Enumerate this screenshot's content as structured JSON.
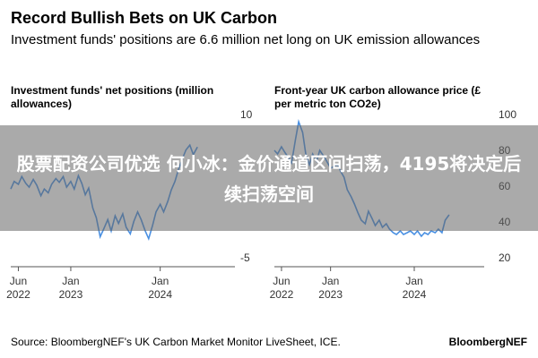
{
  "header": {
    "title": "Record Bullish Bets on UK Carbon",
    "subtitle": "Investment funds' positions are 6.6 million net long on UK emission allowances"
  },
  "overlay": {
    "text": "股票配资公司优选 何小冰：金价通道区间扫荡，4195将决定后续扫荡空间"
  },
  "footer": {
    "source": "Source: BloombergNEF's UK Carbon Market Monitor LiveSheet, ICE.",
    "brand": "BloombergNEF"
  },
  "colors": {
    "series": "#4a90e2"
  },
  "chart_data": [
    {
      "type": "line",
      "title_lines": [
        "Investment funds' net positions (million",
        "allowances)"
      ],
      "xlim": [
        "2022-05-01",
        "2024-11-01"
      ],
      "ylim": [
        -5,
        10
      ],
      "y_ticks": [
        -5,
        10
      ],
      "x_ticks": [
        {
          "date": "2022-06-01",
          "lines": [
            "Jun",
            "2022"
          ]
        },
        {
          "date": "2023-01-01",
          "lines": [
            "Jan",
            "2023"
          ]
        },
        {
          "date": "2024-01-01",
          "lines": [
            "Jan",
            "2024"
          ]
        }
      ],
      "series": [
        {
          "points": [
            [
              "2022-05-01",
              2.2
            ],
            [
              "2022-05-15",
              3.0
            ],
            [
              "2022-06-01",
              2.7
            ],
            [
              "2022-06-15",
              3.5
            ],
            [
              "2022-07-01",
              2.8
            ],
            [
              "2022-07-15",
              2.4
            ],
            [
              "2022-08-01",
              3.2
            ],
            [
              "2022-08-15",
              2.6
            ],
            [
              "2022-09-01",
              1.5
            ],
            [
              "2022-09-15",
              2.2
            ],
            [
              "2022-10-01",
              1.8
            ],
            [
              "2022-10-15",
              2.7
            ],
            [
              "2022-11-01",
              3.3
            ],
            [
              "2022-11-15",
              2.9
            ],
            [
              "2022-12-01",
              3.5
            ],
            [
              "2022-12-15",
              2.4
            ],
            [
              "2023-01-01",
              3.0
            ],
            [
              "2023-01-15",
              2.2
            ],
            [
              "2023-02-01",
              3.6
            ],
            [
              "2023-02-15",
              2.8
            ],
            [
              "2023-03-01",
              1.6
            ],
            [
              "2023-03-15",
              2.3
            ],
            [
              "2023-04-01",
              0.2
            ],
            [
              "2023-04-15",
              -0.8
            ],
            [
              "2023-05-01",
              -2.8
            ],
            [
              "2023-05-15",
              -2.0
            ],
            [
              "2023-06-01",
              -1.0
            ],
            [
              "2023-06-15",
              -2.2
            ],
            [
              "2023-07-01",
              -0.6
            ],
            [
              "2023-07-15",
              -1.4
            ],
            [
              "2023-08-01",
              -0.4
            ],
            [
              "2023-08-15",
              -1.8
            ],
            [
              "2023-09-01",
              -2.5
            ],
            [
              "2023-09-15",
              -1.2
            ],
            [
              "2023-10-01",
              -0.2
            ],
            [
              "2023-10-15",
              -1.0
            ],
            [
              "2023-11-01",
              -2.2
            ],
            [
              "2023-11-15",
              -3.0
            ],
            [
              "2023-12-01",
              -1.6
            ],
            [
              "2023-12-15",
              -0.2
            ],
            [
              "2024-01-01",
              0.6
            ],
            [
              "2024-01-15",
              -0.2
            ],
            [
              "2024-02-01",
              0.9
            ],
            [
              "2024-02-15",
              2.1
            ],
            [
              "2024-03-01",
              3.0
            ],
            [
              "2024-03-15",
              4.2
            ],
            [
              "2024-04-01",
              5.4
            ],
            [
              "2024-04-15",
              6.3
            ],
            [
              "2024-05-01",
              6.8
            ],
            [
              "2024-05-15",
              5.8
            ],
            [
              "2024-06-01",
              6.6
            ]
          ]
        }
      ]
    },
    {
      "type": "line",
      "title_lines": [
        "Front-year UK carbon allowance price (£",
        "per metric ton CO2e)"
      ],
      "xlim": [
        "2022-05-01",
        "2024-11-01"
      ],
      "ylim": [
        20,
        100
      ],
      "y_ticks": [
        20,
        40,
        60,
        80,
        100
      ],
      "x_ticks": [
        {
          "date": "2022-06-01",
          "lines": [
            "Jun",
            "2022"
          ]
        },
        {
          "date": "2023-01-01",
          "lines": [
            "Jan",
            "2023"
          ]
        },
        {
          "date": "2024-01-01",
          "lines": [
            "Jan",
            "2024"
          ]
        }
      ],
      "series": [
        {
          "points": [
            [
              "2022-05-01",
              80
            ],
            [
              "2022-05-15",
              78
            ],
            [
              "2022-06-01",
              82
            ],
            [
              "2022-06-15",
              79
            ],
            [
              "2022-07-01",
              76
            ],
            [
              "2022-07-15",
              73
            ],
            [
              "2022-08-01",
              86
            ],
            [
              "2022-08-15",
              96
            ],
            [
              "2022-09-01",
              90
            ],
            [
              "2022-09-15",
              78
            ],
            [
              "2022-10-01",
              72
            ],
            [
              "2022-10-15",
              78
            ],
            [
              "2022-11-01",
              74
            ],
            [
              "2022-11-15",
              80
            ],
            [
              "2022-12-01",
              77
            ],
            [
              "2022-12-15",
              74
            ],
            [
              "2023-01-01",
              70
            ],
            [
              "2023-01-15",
              71
            ],
            [
              "2023-02-01",
              72
            ],
            [
              "2023-02-15",
              68
            ],
            [
              "2023-03-01",
              65
            ],
            [
              "2023-03-15",
              58
            ],
            [
              "2023-04-01",
              54
            ],
            [
              "2023-04-15",
              50
            ],
            [
              "2023-05-01",
              45
            ],
            [
              "2023-05-15",
              41
            ],
            [
              "2023-06-01",
              39
            ],
            [
              "2023-06-15",
              46
            ],
            [
              "2023-07-01",
              42
            ],
            [
              "2023-07-15",
              38
            ],
            [
              "2023-08-01",
              41
            ],
            [
              "2023-08-15",
              37
            ],
            [
              "2023-09-01",
              39
            ],
            [
              "2023-09-15",
              36
            ],
            [
              "2023-10-01",
              34
            ],
            [
              "2023-10-15",
              33
            ],
            [
              "2023-11-01",
              35
            ],
            [
              "2023-11-15",
              33
            ],
            [
              "2023-12-01",
              34
            ],
            [
              "2023-12-15",
              35
            ],
            [
              "2024-01-01",
              33
            ],
            [
              "2024-01-15",
              35
            ],
            [
              "2024-02-01",
              32
            ],
            [
              "2024-02-15",
              34
            ],
            [
              "2024-03-01",
              33
            ],
            [
              "2024-03-15",
              35
            ],
            [
              "2024-04-01",
              34
            ],
            [
              "2024-04-15",
              36
            ],
            [
              "2024-05-01",
              34
            ],
            [
              "2024-05-15",
              41
            ],
            [
              "2024-06-01",
              44
            ]
          ]
        }
      ]
    }
  ]
}
